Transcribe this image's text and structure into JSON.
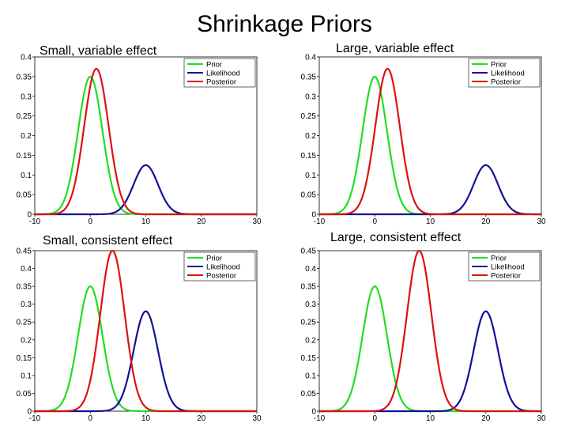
{
  "slide_title": "Shrinkage Priors",
  "colors": {
    "prior": "#22dd22",
    "likelihood": "#111199",
    "posterior": "#dd1111",
    "axis": "#000000"
  },
  "chart_data": [
    {
      "type": "line",
      "title": "Small, variable effect",
      "xlim": [
        -10,
        30
      ],
      "ylim": [
        0,
        0.4
      ],
      "xticks": [
        -10,
        0,
        10,
        20,
        30
      ],
      "yticks": [
        0,
        0.05,
        0.1,
        0.15,
        0.2,
        0.25,
        0.3,
        0.35,
        0.4
      ],
      "legend": "top-right",
      "series": [
        {
          "name": "Prior",
          "kind": "normal",
          "mean": 0,
          "peak": 0.35
        },
        {
          "name": "Likelihood",
          "kind": "normal",
          "mean": 10,
          "peak": 0.125
        },
        {
          "name": "Posterior",
          "kind": "normal",
          "mean": 1.1,
          "peak": 0.37
        }
      ]
    },
    {
      "type": "line",
      "title": "Large, variable effect",
      "xlim": [
        -10,
        30
      ],
      "ylim": [
        0,
        0.4
      ],
      "xticks": [
        -10,
        0,
        10,
        20,
        30
      ],
      "yticks": [
        0,
        0.05,
        0.1,
        0.15,
        0.2,
        0.25,
        0.3,
        0.35,
        0.4
      ],
      "legend": "top-right",
      "series": [
        {
          "name": "Prior",
          "kind": "normal",
          "mean": 0,
          "peak": 0.35
        },
        {
          "name": "Likelihood",
          "kind": "normal",
          "mean": 20,
          "peak": 0.125
        },
        {
          "name": "Posterior",
          "kind": "normal",
          "mean": 2.3,
          "peak": 0.37
        }
      ]
    },
    {
      "type": "line",
      "title": "Small, consistent effect",
      "xlim": [
        -10,
        30
      ],
      "ylim": [
        0,
        0.45
      ],
      "xticks": [
        -10,
        0,
        10,
        20,
        30
      ],
      "yticks": [
        0,
        0.05,
        0.1,
        0.15,
        0.2,
        0.25,
        0.3,
        0.35,
        0.4,
        0.45
      ],
      "legend": "top-right",
      "series": [
        {
          "name": "Prior",
          "kind": "normal",
          "mean": 0,
          "peak": 0.35
        },
        {
          "name": "Likelihood",
          "kind": "normal",
          "mean": 10,
          "peak": 0.28
        },
        {
          "name": "Posterior",
          "kind": "normal",
          "mean": 4,
          "peak": 0.45
        }
      ]
    },
    {
      "type": "line",
      "title": "Large, consistent effect",
      "xlim": [
        -10,
        30
      ],
      "ylim": [
        0,
        0.45
      ],
      "xticks": [
        -10,
        0,
        10,
        20,
        30
      ],
      "yticks": [
        0,
        0.05,
        0.1,
        0.15,
        0.2,
        0.25,
        0.3,
        0.35,
        0.4,
        0.45
      ],
      "legend": "top-right",
      "series": [
        {
          "name": "Prior",
          "kind": "normal",
          "mean": 0,
          "peak": 0.35
        },
        {
          "name": "Likelihood",
          "kind": "normal",
          "mean": 20,
          "peak": 0.28
        },
        {
          "name": "Posterior",
          "kind": "normal",
          "mean": 8,
          "peak": 0.45
        }
      ]
    }
  ]
}
